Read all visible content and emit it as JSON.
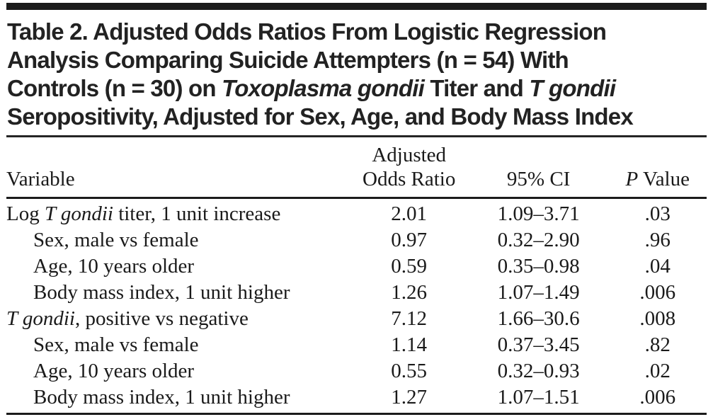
{
  "title": {
    "line1": "Table 2. Adjusted Odds Ratios From Logistic Regression",
    "line2": "Analysis Comparing Suicide Attempters (n = 54) With",
    "line3_pre": "Controls (n = 30) on ",
    "line3_italic1": "Toxoplasma gondii",
    "line3_mid": " Titer and ",
    "line3_italic2": "T gondii",
    "line4": "Seropositivity, Adjusted for Sex, Age, and Body Mass Index"
  },
  "table": {
    "headers": {
      "variable": "Variable",
      "aor_line1": "Adjusted",
      "aor_line2": "Odds Ratio",
      "ci": "95% CI",
      "p_italic": "P",
      "p_rest": " Value"
    },
    "rows": [
      {
        "var_pre": "Log ",
        "var_italic": "T gondii",
        "var_post": " titer, 1 unit increase",
        "aor": "2.01",
        "ci": "1.09–3.71",
        "p": ".03"
      },
      {
        "var_pre": "",
        "var_italic": "",
        "var_post": "Sex, male vs female",
        "aor": "0.97",
        "ci": "0.32–2.90",
        "p": ".96"
      },
      {
        "var_pre": "",
        "var_italic": "",
        "var_post": "Age, 10 years older",
        "aor": "0.59",
        "ci": "0.35–0.98",
        "p": ".04"
      },
      {
        "var_pre": "",
        "var_italic": "",
        "var_post": "Body mass index, 1 unit higher",
        "aor": "1.26",
        "ci": "1.07–1.49",
        "p": ".006"
      },
      {
        "var_pre": "",
        "var_italic": "T gondii",
        "var_post": ", positive vs negative",
        "aor": "7.12",
        "ci": "1.66–30.6",
        "p": ".008"
      },
      {
        "var_pre": "",
        "var_italic": "",
        "var_post": "Sex, male vs female",
        "aor": "1.14",
        "ci": "0.37–3.45",
        "p": ".82"
      },
      {
        "var_pre": "",
        "var_italic": "",
        "var_post": "Age, 10 years older",
        "aor": "0.55",
        "ci": "0.32–0.93",
        "p": ".02"
      },
      {
        "var_pre": "",
        "var_italic": "",
        "var_post": "Body mass index, 1 unit higher",
        "aor": "1.27",
        "ci": "1.07–1.51",
        "p": ".006"
      }
    ]
  },
  "colors": {
    "text": "#1c1c1c",
    "rule": "#1b1b1b",
    "background": "#ffffff"
  }
}
